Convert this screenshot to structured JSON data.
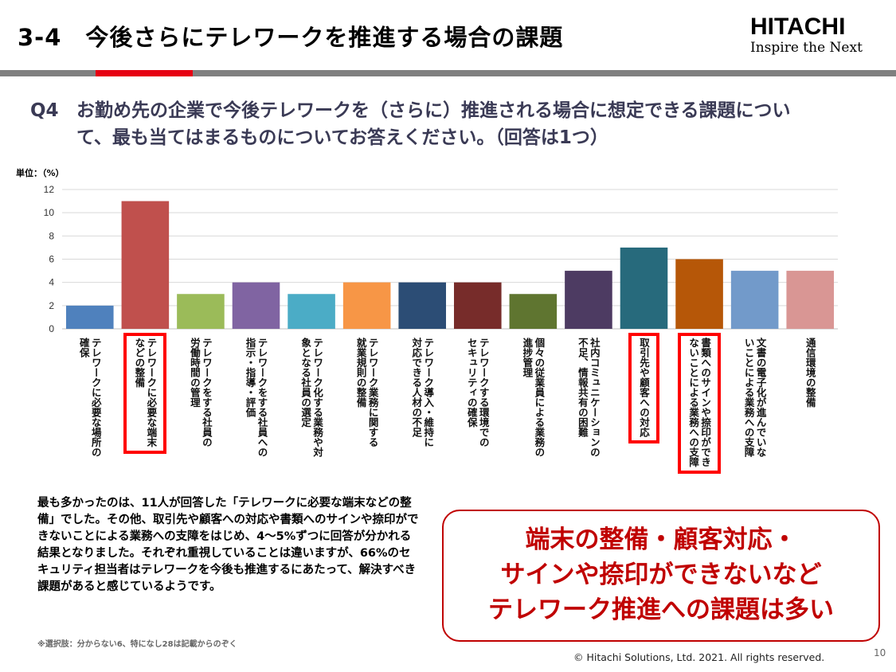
{
  "header": {
    "title": "3-4　今後さらにテレワークを推進する場合の課題",
    "logo_brand": "HITACHI",
    "logo_tagline": "Inspire the Next",
    "accent": "#e60012"
  },
  "question": {
    "label": "Q4",
    "text": "お勤め先の企業で今後テレワークを（さらに）推進される場合に想定できる課題について、最も当てはまるものについてお答えください。（回答は1つ）"
  },
  "chart_data": {
    "type": "bar",
    "unit_label": "単位：（%）",
    "ylim": [
      0,
      12
    ],
    "yticks": [
      0,
      2,
      4,
      6,
      8,
      10,
      12
    ],
    "grid": true,
    "categories": [
      "テレワークに必要な場所の\n確保",
      "テレワークに必要な端末\nなどの整備",
      "テレワークをする社員の\n労働時間の管理",
      "テレワークをする社員への\n指示・指導・評価",
      "テレワーク化する業務や対\n象となる社員の選定",
      "テレワーク業務に関する\n就業規則の整備",
      "テレワーク導入・維持に\n対応できる人材の不足",
      "テレワークする環境での\nセキュリティの確保",
      "個々の従業員による業務の\n進捗管理",
      "社内コミュニケーションの\n不足、情報共有の困難",
      "取引先や顧客への対応",
      "書類へのサインや捺印ができ\nないことによる業務への支障",
      "文書の電子化が進んでいな\nいことによる業務への支障",
      "通信環境の整備"
    ],
    "values": [
      2,
      11,
      3,
      4,
      3,
      4,
      4,
      4,
      3,
      5,
      7,
      6,
      5,
      5
    ],
    "colors": [
      "#4f81bd",
      "#c0504d",
      "#9bbb59",
      "#8064a2",
      "#4bacc6",
      "#f79646",
      "#2c4d75",
      "#772c2a",
      "#5f7530",
      "#4d3b62",
      "#276a7c",
      "#b65708",
      "#729aca",
      "#d99694"
    ],
    "highlight": [
      1,
      10,
      11
    ]
  },
  "summary": "最も多かったのは、11人が回答した「テレワークに必要な端末などの整備」でした。その他、取引先や顧客への対応や書類へのサインや捺印ができないことによる業務への支障をはじめ、4～5%ずつに回答が分かれる結果となりました。それぞれ重視していることは違いますが、66%のセキュリティ担当者はテレワークを今後も推進するにあたって、解決すべき課題があると感じているようです。",
  "note": "※選択肢：分からない6、特になし28は記載からのぞく",
  "callout": {
    "line1": "端末の整備・顧客対応・",
    "line2": "サインや捺印ができないなど",
    "line3": "テレワーク推進への課題は多い",
    "color": "#c00000"
  },
  "footer": {
    "copyright": "© Hitachi Solutions, Ltd. 2021. All rights reserved.",
    "page": "10"
  }
}
